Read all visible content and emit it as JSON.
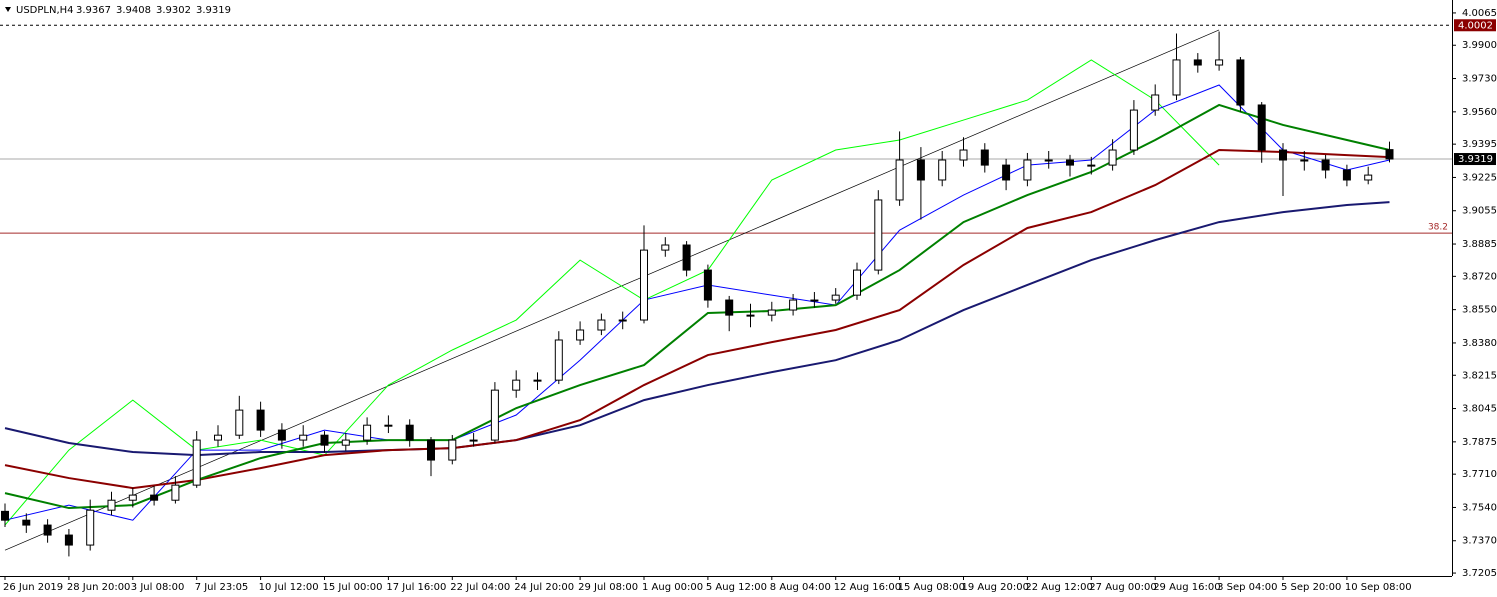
{
  "chart_data": {
    "type": "candlestick",
    "symbol": "USDPLN,H4",
    "categories": [
      "26 Jun 2019",
      null,
      null,
      "28 Jun 20:00",
      null,
      null,
      "3 Jul 08:00",
      null,
      null,
      "7 Jul 23:05",
      null,
      null,
      "10 Jul 12:00",
      null,
      null,
      "15 Jul 00:00",
      null,
      null,
      "17 Jul 16:00",
      null,
      null,
      "22 Jul 04:00",
      null,
      null,
      "24 Jul 20:00",
      null,
      null,
      "29 Jul 08:00",
      null,
      null,
      "1 Aug 00:00",
      null,
      null,
      "5 Aug 12:00",
      null,
      null,
      "8 Aug 04:00",
      null,
      null,
      "12 Aug 16:00",
      null,
      null,
      "15 Aug 08:00",
      null,
      null,
      "19 Aug 20:00",
      null,
      null,
      "22 Aug 12:00",
      null,
      null,
      "27 Aug 00:00",
      null,
      null,
      "29 Aug 16:00",
      null,
      null,
      "3 Sep 04:00",
      null,
      null,
      "5 Sep 20:00",
      null,
      null,
      "10 Sep 08:00",
      null,
      null
    ],
    "open": [
      3.752,
      3.7475,
      3.745,
      3.7399,
      3.7348,
      3.7526,
      3.7577,
      3.7603,
      3.7577,
      3.7654,
      3.7884,
      3.7909,
      3.8037,
      3.7935,
      3.7884,
      3.7909,
      3.7858,
      3.7884,
      3.796,
      3.796,
      3.7884,
      3.7782,
      3.7884,
      3.7884,
      3.8139,
      3.819,
      3.819,
      3.8395,
      3.8446,
      3.8497,
      3.8497,
      3.8854,
      3.888,
      3.8752,
      3.8599,
      3.8522,
      3.8522,
      3.8548,
      3.8599,
      3.8599,
      3.8624,
      3.8752,
      3.911,
      3.9314,
      3.9212,
      3.9314,
      3.9365,
      3.9288,
      3.9212,
      3.9314,
      3.9314,
      3.9288,
      3.9288,
      3.9365,
      3.9569,
      3.9646,
      3.9825,
      3.9799,
      3.9825,
      3.9595,
      3.9365,
      3.9314,
      3.9314,
      3.9263,
      3.9212,
      3.9367
    ],
    "high": [
      3.756,
      3.751,
      3.748,
      3.743,
      3.758,
      3.762,
      3.764,
      3.765,
      3.77,
      3.793,
      3.796,
      3.811,
      3.808,
      3.797,
      3.796,
      3.793,
      3.792,
      3.8,
      3.801,
      3.799,
      3.79,
      3.791,
      3.792,
      3.818,
      3.824,
      3.823,
      3.844,
      3.849,
      3.853,
      3.854,
      3.898,
      3.892,
      3.89,
      3.878,
      3.862,
      3.858,
      3.859,
      3.863,
      3.864,
      3.866,
      3.879,
      3.916,
      3.946,
      3.938,
      3.936,
      3.943,
      3.94,
      3.932,
      3.935,
      3.936,
      3.934,
      3.933,
      3.942,
      3.962,
      3.97,
      3.996,
      3.986,
      3.997,
      3.984,
      3.961,
      3.94,
      3.936,
      3.934,
      3.929,
      3.928,
      3.9408
    ],
    "low": [
      3.744,
      3.741,
      3.736,
      3.729,
      3.732,
      3.75,
      3.754,
      3.755,
      3.756,
      3.764,
      3.785,
      3.789,
      3.79,
      3.784,
      3.785,
      3.782,
      3.783,
      3.786,
      3.792,
      3.785,
      3.77,
      3.776,
      3.785,
      3.787,
      3.81,
      3.814,
      3.817,
      3.837,
      3.842,
      3.845,
      3.848,
      3.882,
      3.872,
      3.856,
      3.844,
      3.846,
      3.849,
      3.852,
      3.856,
      3.858,
      3.86,
      3.873,
      3.908,
      3.901,
      3.918,
      3.928,
      3.925,
      3.916,
      3.918,
      3.927,
      3.923,
      3.924,
      3.926,
      3.934,
      3.954,
      3.962,
      3.976,
      3.977,
      3.956,
      3.93,
      3.913,
      3.926,
      3.922,
      3.918,
      3.919,
      3.9302
    ],
    "close": [
      3.7475,
      3.745,
      3.7399,
      3.7348,
      3.7526,
      3.7577,
      3.7603,
      3.7577,
      3.7654,
      3.7884,
      3.7909,
      3.8037,
      3.7935,
      3.7884,
      3.7909,
      3.7858,
      3.7884,
      3.796,
      3.796,
      3.7884,
      3.7782,
      3.7884,
      3.7884,
      3.8139,
      3.819,
      3.819,
      3.8395,
      3.8446,
      3.8497,
      3.8497,
      3.8854,
      3.888,
      3.8752,
      3.8599,
      3.8522,
      3.8522,
      3.8548,
      3.8599,
      3.8599,
      3.8624,
      3.8752,
      3.911,
      3.9314,
      3.9212,
      3.9314,
      3.9365,
      3.9288,
      3.9212,
      3.9314,
      3.9314,
      3.9288,
      3.9288,
      3.9365,
      3.9569,
      3.9646,
      3.9825,
      3.9799,
      3.9825,
      3.9595,
      3.9365,
      3.9314,
      3.9314,
      3.9263,
      3.9212,
      3.9237,
      3.9319
    ],
    "overlay_x": [
      0,
      3,
      6,
      9,
      12,
      15,
      18,
      21,
      24,
      27,
      30,
      33,
      36,
      39,
      42,
      45,
      48,
      51,
      54,
      57,
      60,
      63,
      65
    ],
    "overlays": [
      {
        "color": "#00ff00",
        "width": 1,
        "values": [
          3.745,
          3.7833,
          3.8088,
          3.7833,
          3.7884,
          3.7807,
          3.8165,
          3.8344,
          3.8497,
          3.8803,
          3.8599,
          3.8752,
          3.9212,
          3.9365,
          3.9416,
          3.9518,
          3.962,
          3.9825,
          3.962,
          3.9288,
          null,
          null,
          null
        ]
      },
      {
        "color": "#0000ff",
        "width": 1,
        "values": [
          3.7475,
          3.7552,
          3.7475,
          3.7833,
          3.7833,
          3.7935,
          3.7884,
          3.7884,
          3.8012,
          3.8292,
          3.8599,
          3.8676,
          3.8624,
          3.8573,
          3.8956,
          3.9135,
          3.9288,
          3.9314,
          3.9569,
          3.9697,
          3.9365,
          3.9263,
          3.9314
        ]
      },
      {
        "color": "#191970",
        "width": 2,
        "values": [
          3.7945,
          3.7869,
          3.7823,
          3.7807,
          3.7823,
          3.7823,
          3.7833,
          3.7843,
          3.7884,
          3.796,
          3.8088,
          3.8165,
          3.8231,
          3.8292,
          3.8395,
          3.8548,
          3.8676,
          3.8803,
          3.8905,
          3.8997,
          3.9048,
          3.9084,
          3.9099
        ]
      },
      {
        "color": "#8b0000",
        "width": 2,
        "values": [
          3.7756,
          3.769,
          3.7639,
          3.768,
          3.7741,
          3.7807,
          3.7833,
          3.7843,
          3.7884,
          3.7986,
          3.8165,
          3.8318,
          3.8384,
          3.8446,
          3.8548,
          3.8778,
          3.8967,
          3.9048,
          3.9186,
          3.9365,
          3.9355,
          3.9339,
          3.9329
        ]
      },
      {
        "color": "#008000",
        "width": 2,
        "values": [
          3.7613,
          3.7537,
          3.7552,
          3.768,
          3.7792,
          3.7869,
          3.7884,
          3.7884,
          3.8047,
          3.8165,
          3.8267,
          3.8533,
          3.8543,
          3.8573,
          3.8752,
          3.8997,
          3.9135,
          3.9253,
          3.9416,
          3.9595,
          3.9493,
          3.9416,
          3.9365
        ]
      }
    ],
    "trendline": {
      "x": [
        0,
        57
      ],
      "values": [
        3.7322,
        3.9978
      ]
    },
    "high_line": 4.0002,
    "fib": {
      "level": 38.2,
      "price": 3.8941
    },
    "ylim": [
      3.719,
      4.0131
    ],
    "yticks": [
      4.0065,
      {
        "value": 3.99,
        "label": "3.9900"
      },
      {
        "value": 3.973,
        "label": "3.9730"
      },
      {
        "value": 3.956,
        "label": "3.9560"
      },
      3.9395,
      3.9225,
      3.9055,
      3.8885,
      {
        "value": 3.872,
        "label": "3.8720"
      },
      {
        "value": 3.855,
        "label": "3.8550"
      },
      {
        "value": 3.838,
        "label": "3.8380"
      },
      3.8215,
      3.8045,
      3.7875,
      {
        "value": 3.771,
        "label": "3.7710"
      },
      {
        "value": 3.754,
        "label": "3.7540"
      },
      {
        "value": 3.737,
        "label": "3.7370"
      },
      3.7205
    ]
  }
}
